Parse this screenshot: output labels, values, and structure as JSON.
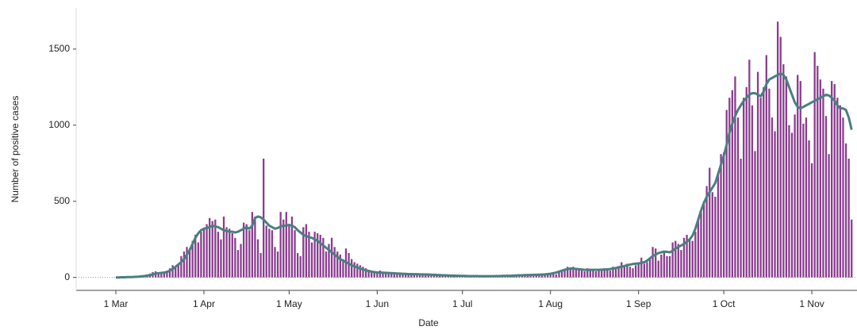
{
  "chart_data": {
    "type": "bar",
    "xlabel": "Date",
    "ylabel": "Number of positive cases",
    "ylim": [
      -85,
      1770
    ],
    "yticks": [
      0,
      500,
      1000,
      1500
    ],
    "xticks": [
      "1 Mar",
      "1 Apr",
      "1 May",
      "1 Jun",
      "1 Jul",
      "1 Aug",
      "1 Sep",
      "1 Oct",
      "1 Nov"
    ],
    "x": [
      "1 Mar",
      "2 Mar",
      "3 Mar",
      "4 Mar",
      "5 Mar",
      "6 Mar",
      "7 Mar",
      "8 Mar",
      "9 Mar",
      "10 Mar",
      "11 Mar",
      "12 Mar",
      "13 Mar",
      "14 Mar",
      "15 Mar",
      "16 Mar",
      "17 Mar",
      "18 Mar",
      "19 Mar",
      "20 Mar",
      "21 Mar",
      "22 Mar",
      "23 Mar",
      "24 Mar",
      "25 Mar",
      "26 Mar",
      "27 Mar",
      "28 Mar",
      "29 Mar",
      "30 Mar",
      "31 Mar",
      "1 Apr",
      "2 Apr",
      "3 Apr",
      "4 Apr",
      "5 Apr",
      "6 Apr",
      "7 Apr",
      "8 Apr",
      "9 Apr",
      "10 Apr",
      "11 Apr",
      "12 Apr",
      "13 Apr",
      "14 Apr",
      "15 Apr",
      "16 Apr",
      "17 Apr",
      "18 Apr",
      "19 Apr",
      "20 Apr",
      "21 Apr",
      "22 Apr",
      "23 Apr",
      "24 Apr",
      "25 Apr",
      "26 Apr",
      "27 Apr",
      "28 Apr",
      "29 Apr",
      "30 Apr",
      "1 May",
      "2 May",
      "3 May",
      "4 May",
      "5 May",
      "6 May",
      "7 May",
      "8 May",
      "9 May",
      "10 May",
      "11 May",
      "12 May",
      "13 May",
      "14 May",
      "15 May",
      "16 May",
      "17 May",
      "18 May",
      "19 May",
      "20 May",
      "21 May",
      "22 May",
      "23 May",
      "24 May",
      "25 May",
      "26 May",
      "27 May",
      "28 May",
      "29 May",
      "30 May",
      "31 May",
      "1 Jun",
      "2 Jun",
      "3 Jun",
      "4 Jun",
      "5 Jun",
      "6 Jun",
      "7 Jun",
      "8 Jun",
      "9 Jun",
      "10 Jun",
      "11 Jun",
      "12 Jun",
      "13 Jun",
      "14 Jun",
      "15 Jun",
      "16 Jun",
      "17 Jun",
      "18 Jun",
      "19 Jun",
      "20 Jun",
      "21 Jun",
      "22 Jun",
      "23 Jun",
      "24 Jun",
      "25 Jun",
      "26 Jun",
      "27 Jun",
      "28 Jun",
      "29 Jun",
      "30 Jun",
      "1 Jul",
      "2 Jul",
      "3 Jul",
      "4 Jul",
      "5 Jul",
      "6 Jul",
      "7 Jul",
      "8 Jul",
      "9 Jul",
      "10 Jul",
      "11 Jul",
      "12 Jul",
      "13 Jul",
      "14 Jul",
      "15 Jul",
      "16 Jul",
      "17 Jul",
      "18 Jul",
      "19 Jul",
      "20 Jul",
      "21 Jul",
      "22 Jul",
      "23 Jul",
      "24 Jul",
      "25 Jul",
      "26 Jul",
      "27 Jul",
      "28 Jul",
      "29 Jul",
      "30 Jul",
      "31 Jul",
      "1 Aug",
      "2 Aug",
      "3 Aug",
      "4 Aug",
      "5 Aug",
      "6 Aug",
      "7 Aug",
      "8 Aug",
      "9 Aug",
      "10 Aug",
      "11 Aug",
      "12 Aug",
      "13 Aug",
      "14 Aug",
      "15 Aug",
      "16 Aug",
      "17 Aug",
      "18 Aug",
      "19 Aug",
      "20 Aug",
      "21 Aug",
      "22 Aug",
      "23 Aug",
      "24 Aug",
      "25 Aug",
      "26 Aug",
      "27 Aug",
      "28 Aug",
      "29 Aug",
      "30 Aug",
      "31 Aug",
      "1 Sep",
      "2 Sep",
      "3 Sep",
      "4 Sep",
      "5 Sep",
      "6 Sep",
      "7 Sep",
      "8 Sep",
      "9 Sep",
      "10 Sep",
      "11 Sep",
      "12 Sep",
      "13 Sep",
      "14 Sep",
      "15 Sep",
      "16 Sep",
      "17 Sep",
      "18 Sep",
      "19 Sep",
      "20 Sep",
      "21 Sep",
      "22 Sep",
      "23 Sep",
      "24 Sep",
      "25 Sep",
      "26 Sep",
      "27 Sep",
      "28 Sep",
      "29 Sep",
      "30 Sep",
      "1 Oct",
      "2 Oct",
      "3 Oct",
      "4 Oct",
      "5 Oct",
      "6 Oct",
      "7 Oct",
      "8 Oct",
      "9 Oct",
      "10 Oct",
      "11 Oct",
      "12 Oct",
      "13 Oct",
      "14 Oct",
      "15 Oct",
      "16 Oct",
      "17 Oct",
      "18 Oct",
      "19 Oct",
      "20 Oct",
      "21 Oct",
      "22 Oct",
      "23 Oct",
      "24 Oct",
      "25 Oct",
      "26 Oct",
      "27 Oct",
      "28 Oct",
      "29 Oct",
      "30 Oct",
      "31 Oct",
      "1 Nov",
      "2 Nov",
      "3 Nov",
      "4 Nov",
      "5 Nov",
      "6 Nov",
      "7 Nov",
      "8 Nov",
      "9 Nov",
      "10 Nov",
      "11 Nov",
      "12 Nov",
      "13 Nov",
      "14 Nov",
      "15 Nov"
    ],
    "series": [
      {
        "type": "bar",
        "color": "#8a3d8f",
        "values": [
          0,
          0,
          1,
          1,
          2,
          3,
          3,
          5,
          8,
          10,
          15,
          20,
          25,
          35,
          40,
          25,
          30,
          35,
          45,
          60,
          80,
          70,
          90,
          140,
          170,
          200,
          190,
          240,
          280,
          230,
          300,
          320,
          350,
          390,
          370,
          380,
          300,
          250,
          400,
          330,
          320,
          290,
          260,
          180,
          220,
          360,
          350,
          310,
          430,
          400,
          250,
          160,
          780,
          340,
          320,
          310,
          200,
          170,
          430,
          380,
          430,
          340,
          400,
          310,
          160,
          140,
          330,
          350,
          300,
          230,
          300,
          290,
          280,
          260,
          170,
          220,
          260,
          200,
          170,
          150,
          120,
          190,
          160,
          120,
          100,
          90,
          80,
          70,
          60,
          50,
          40,
          35,
          30,
          45,
          30,
          25,
          30,
          25,
          20,
          20,
          25,
          20,
          30,
          25,
          20,
          20,
          15,
          20,
          25,
          20,
          15,
          15,
          20,
          15,
          10,
          15,
          15,
          10,
          15,
          10,
          10,
          10,
          8,
          10,
          8,
          10,
          6,
          8,
          5,
          8,
          10,
          8,
          6,
          5,
          8,
          10,
          12,
          8,
          6,
          10,
          12,
          10,
          8,
          15,
          12,
          15,
          18,
          10,
          12,
          20,
          15,
          18,
          20,
          25,
          30,
          20,
          35,
          40,
          55,
          70,
          65,
          70,
          55,
          50,
          45,
          40,
          60,
          55,
          50,
          40,
          45,
          55,
          60,
          50,
          45,
          70,
          60,
          75,
          100,
          80,
          90,
          70,
          60,
          80,
          95,
          130,
          90,
          100,
          120,
          200,
          190,
          110,
          150,
          170,
          140,
          140,
          230,
          240,
          220,
          180,
          260,
          280,
          250,
          240,
          300,
          380,
          430,
          500,
          600,
          720,
          560,
          530,
          680,
          810,
          820,
          1100,
          1180,
          1230,
          1320,
          1050,
          780,
          1180,
          1250,
          1430,
          1130,
          830,
          1350,
          1180,
          1250,
          1460,
          1240,
          1050,
          960,
          1680,
          1580,
          1400,
          1320,
          1000,
          950,
          1070,
          1330,
          1290,
          1010,
          1050,
          900,
          750,
          1480,
          1390,
          1300,
          1240,
          1060,
          810,
          1290,
          1270,
          1180,
          1130,
          1050,
          880,
          780,
          380
        ]
      },
      {
        "type": "line",
        "color": "#4a7f80",
        "values": [
          0,
          0,
          1,
          1,
          2,
          2,
          3,
          4,
          5,
          7,
          9,
          12,
          15,
          20,
          25,
          28,
          30,
          32,
          35,
          45,
          55,
          70,
          85,
          100,
          120,
          150,
          180,
          220,
          260,
          290,
          310,
          320,
          325,
          330,
          340,
          335,
          330,
          320,
          310,
          305,
          300,
          300,
          295,
          300,
          310,
          320,
          330,
          320,
          340,
          390,
          400,
          395,
          380,
          360,
          340,
          330,
          320,
          325,
          335,
          340,
          340,
          345,
          340,
          330,
          310,
          295,
          280,
          270,
          265,
          260,
          250,
          240,
          225,
          210,
          195,
          180,
          165,
          150,
          135,
          120,
          110,
          100,
          90,
          80,
          72,
          65,
          58,
          52,
          47,
          42,
          38,
          35,
          33,
          32,
          31,
          30,
          29,
          28,
          27,
          26,
          25,
          24,
          23,
          22,
          22,
          21,
          21,
          20,
          20,
          19,
          19,
          18,
          17,
          16,
          15,
          14,
          14,
          13,
          12,
          12,
          11,
          11,
          10,
          10,
          9,
          9,
          9,
          9,
          8,
          8,
          8,
          8,
          8,
          8,
          9,
          9,
          10,
          10,
          11,
          11,
          12,
          13,
          14,
          14,
          15,
          16,
          16,
          17,
          17,
          18,
          19,
          20,
          22,
          24,
          28,
          32,
          38,
          44,
          50,
          55,
          58,
          58,
          56,
          54,
          52,
          50,
          50,
          50,
          50,
          50,
          50,
          51,
          52,
          53,
          55,
          58,
          62,
          66,
          70,
          75,
          80,
          84,
          88,
          90,
          92,
          95,
          100,
          110,
          125,
          140,
          150,
          160,
          165,
          170,
          168,
          165,
          175,
          190,
          200,
          210,
          220,
          235,
          250,
          275,
          320,
          380,
          440,
          490,
          530,
          560,
          590,
          620,
          680,
          740,
          800,
          870,
          950,
          1010,
          1060,
          1100,
          1130,
          1160,
          1180,
          1200,
          1210,
          1210,
          1200,
          1190,
          1220,
          1270,
          1300,
          1310,
          1320,
          1330,
          1340,
          1330,
          1300,
          1250,
          1200,
          1150,
          1120,
          1110,
          1120,
          1130,
          1140,
          1150,
          1160,
          1170,
          1180,
          1190,
          1200,
          1195,
          1180,
          1160,
          1130,
          1110,
          1110,
          1100,
          1050,
          970
        ]
      }
    ]
  }
}
